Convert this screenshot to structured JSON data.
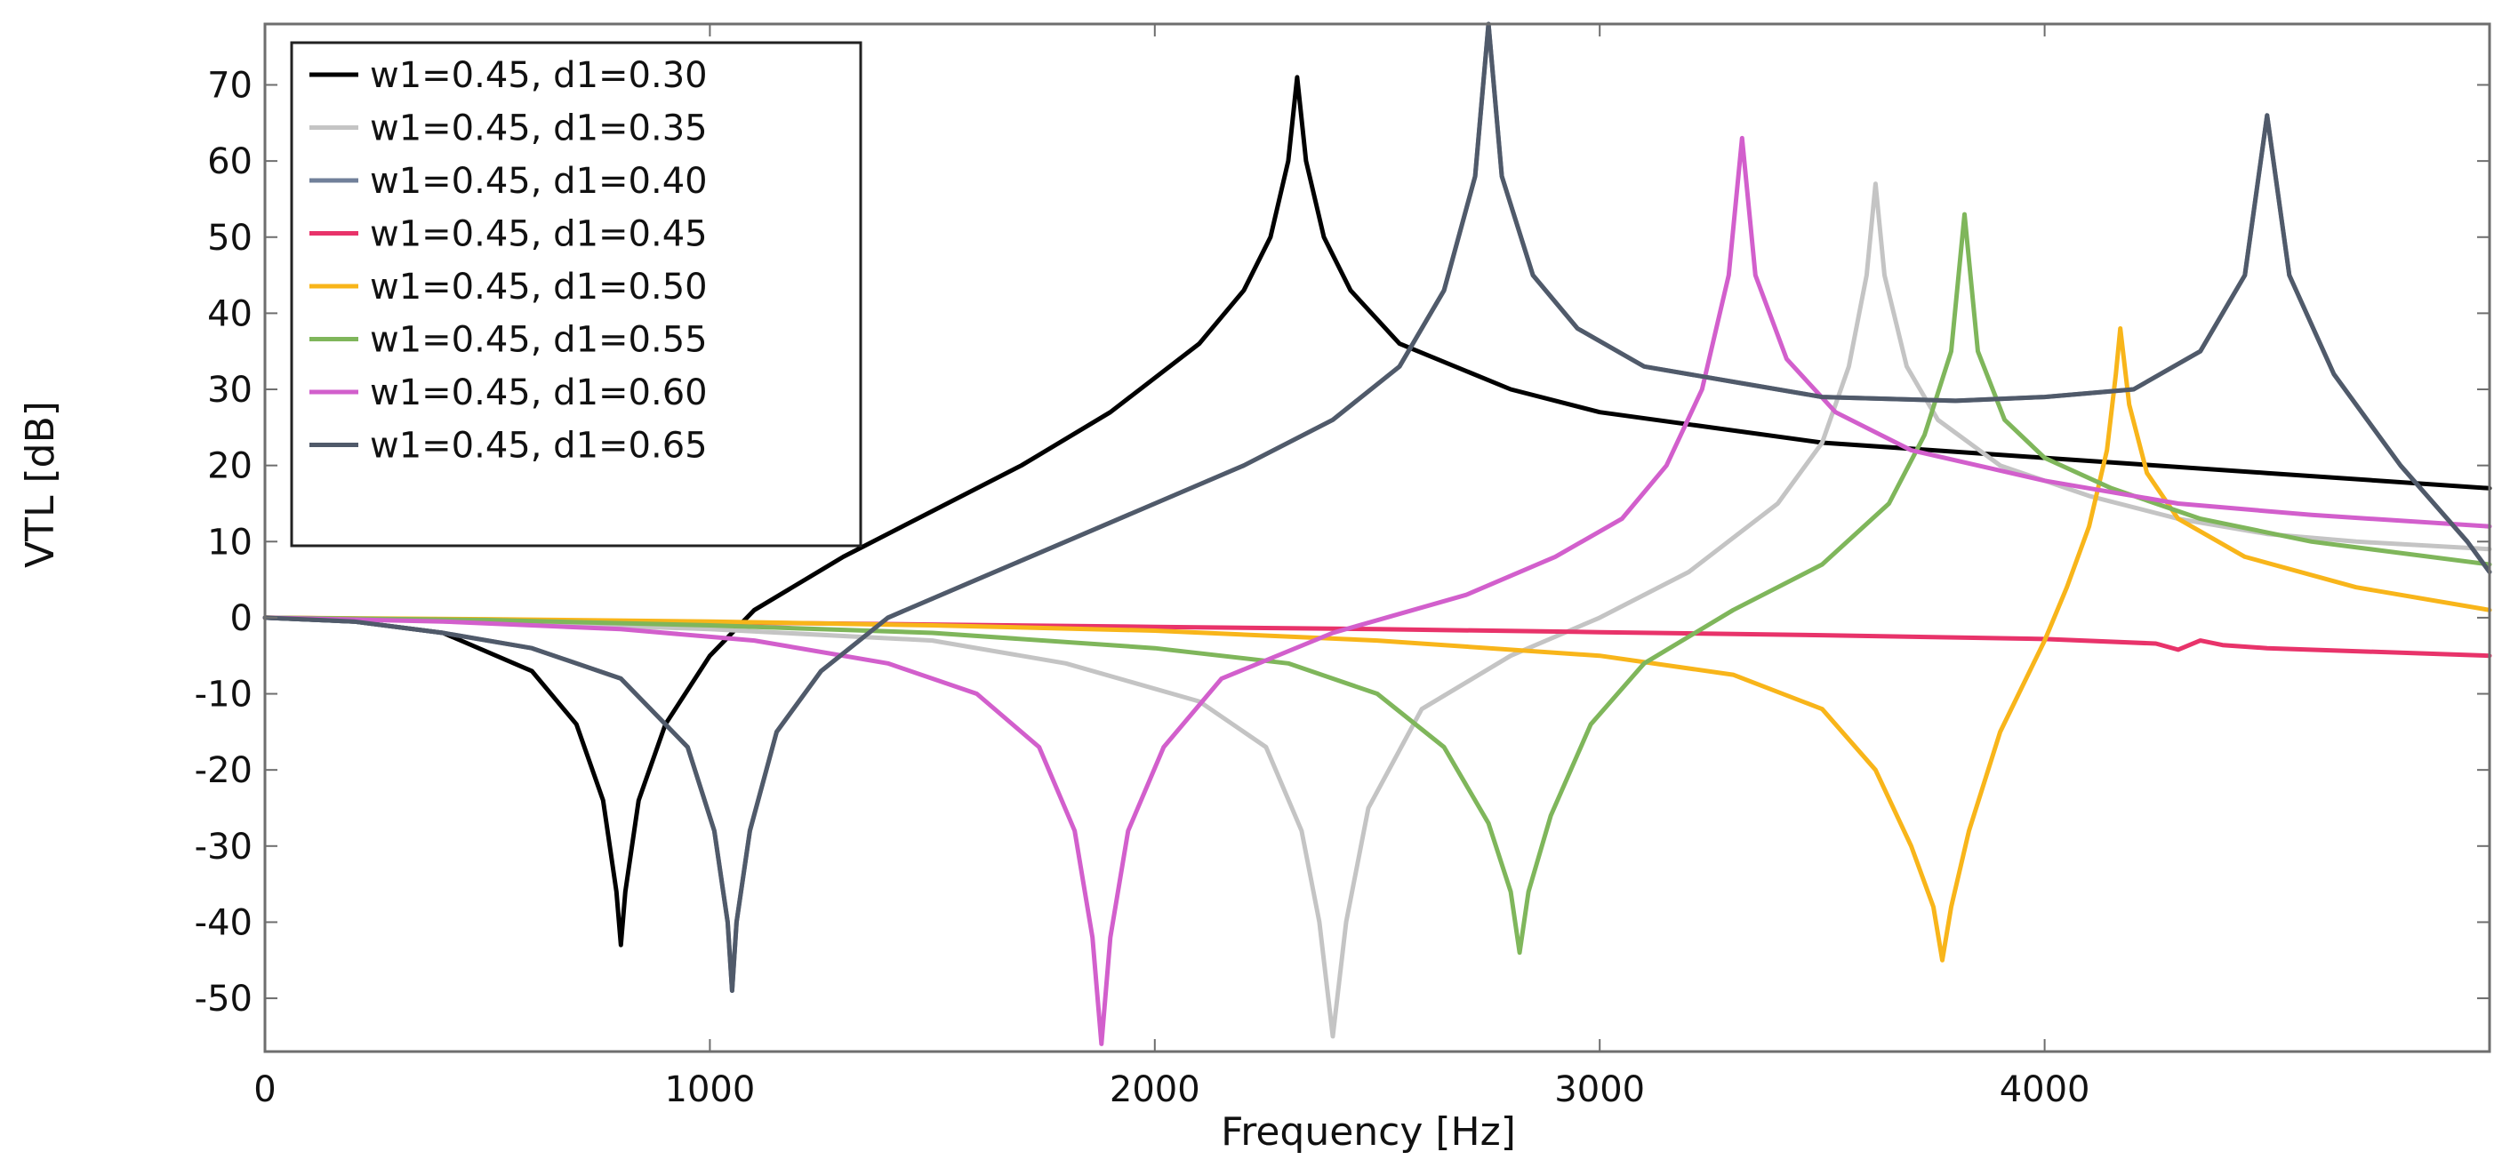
{
  "chart_data": {
    "type": "line",
    "title": "",
    "xlabel": "Frequency [Hz]",
    "ylabel": "VTL [dB]",
    "xlim": [
      0,
      5000
    ],
    "ylim": [
      -57,
      78
    ],
    "x_ticks": [
      0,
      1000,
      2000,
      3000,
      4000
    ],
    "x_tick_labels": [
      "0",
      "1000",
      "2000",
      "3000",
      "4000"
    ],
    "y_ticks": [
      70,
      60,
      50,
      40,
      30,
      20,
      10,
      0,
      -10,
      -20,
      -30,
      -40,
      -50
    ],
    "y_tick_labels": [
      "70",
      "60",
      "50",
      "40",
      "30",
      "20",
      "10",
      "0",
      "-10",
      "-20",
      "-30",
      "-40",
      "-50"
    ],
    "legend_position": "top-left",
    "series": [
      {
        "name": "w1=0.45, d1=0.30",
        "color": "#000000",
        "points": [
          [
            0,
            0
          ],
          [
            200,
            -0.5
          ],
          [
            400,
            -2
          ],
          [
            600,
            -7
          ],
          [
            700,
            -14
          ],
          [
            760,
            -24
          ],
          [
            790,
            -36
          ],
          [
            800,
            -43
          ],
          [
            810,
            -36
          ],
          [
            840,
            -24
          ],
          [
            900,
            -14
          ],
          [
            1000,
            -5
          ],
          [
            1100,
            1
          ],
          [
            1300,
            8
          ],
          [
            1500,
            14
          ],
          [
            1700,
            20
          ],
          [
            1900,
            27
          ],
          [
            2100,
            36
          ],
          [
            2200,
            43
          ],
          [
            2260,
            50
          ],
          [
            2300,
            60
          ],
          [
            2320,
            71
          ],
          [
            2340,
            60
          ],
          [
            2380,
            50
          ],
          [
            2440,
            43
          ],
          [
            2550,
            36
          ],
          [
            2800,
            30
          ],
          [
            3000,
            27
          ],
          [
            3500,
            23
          ],
          [
            4000,
            21
          ],
          [
            4500,
            19
          ],
          [
            5000,
            17
          ]
        ]
      },
      {
        "name": "w1=0.45, d1=0.35",
        "color": "#c4c4c4",
        "points": [
          [
            0,
            0
          ],
          [
            500,
            -0.5
          ],
          [
            1000,
            -1.5
          ],
          [
            1500,
            -3
          ],
          [
            1800,
            -6
          ],
          [
            2100,
            -11
          ],
          [
            2250,
            -17
          ],
          [
            2330,
            -28
          ],
          [
            2370,
            -40
          ],
          [
            2400,
            -55
          ],
          [
            2430,
            -40
          ],
          [
            2480,
            -25
          ],
          [
            2600,
            -12
          ],
          [
            2800,
            -5
          ],
          [
            3000,
            0
          ],
          [
            3200,
            6
          ],
          [
            3400,
            15
          ],
          [
            3500,
            23
          ],
          [
            3560,
            33
          ],
          [
            3600,
            45
          ],
          [
            3620,
            57
          ],
          [
            3640,
            45
          ],
          [
            3690,
            33
          ],
          [
            3760,
            26
          ],
          [
            3900,
            20
          ],
          [
            4100,
            16
          ],
          [
            4300,
            13
          ],
          [
            4500,
            11
          ],
          [
            4700,
            10
          ],
          [
            5000,
            9
          ]
        ]
      },
      {
        "name": "w1=0.45, d1=0.40",
        "color": "#71809a",
        "points": [
          [
            0,
            0
          ],
          [
            200,
            -0.5
          ],
          [
            400,
            -2
          ],
          [
            600,
            -4
          ],
          [
            800,
            -8
          ],
          [
            950,
            -17
          ],
          [
            1010,
            -28
          ],
          [
            1040,
            -40
          ],
          [
            1050,
            -49
          ],
          [
            1060,
            -40
          ],
          [
            1090,
            -28
          ],
          [
            1150,
            -15
          ],
          [
            1250,
            -7
          ],
          [
            1400,
            0
          ],
          [
            1600,
            5
          ],
          [
            1800,
            10
          ],
          [
            2000,
            15
          ],
          [
            2200,
            20
          ],
          [
            2400,
            26
          ],
          [
            2550,
            33
          ],
          [
            2650,
            43
          ],
          [
            2720,
            58
          ],
          [
            2750,
            78
          ],
          [
            2780,
            58
          ],
          [
            2850,
            45
          ],
          [
            2950,
            38
          ],
          [
            3100,
            33
          ],
          [
            3300,
            31
          ],
          [
            3500,
            29
          ],
          [
            3800,
            28.5
          ],
          [
            4000,
            29
          ],
          [
            4200,
            30
          ],
          [
            4350,
            35
          ],
          [
            4450,
            45
          ],
          [
            4500,
            66
          ],
          [
            4550,
            45
          ],
          [
            4650,
            32
          ],
          [
            4800,
            20
          ],
          [
            4950,
            10
          ],
          [
            5000,
            6
          ]
        ]
      },
      {
        "name": "w1=0.45, d1=0.45",
        "color": "#e8336a",
        "points": [
          [
            0,
            0
          ],
          [
            500,
            -0.3
          ],
          [
            1000,
            -0.6
          ],
          [
            1500,
            -0.9
          ],
          [
            2000,
            -1.2
          ],
          [
            2500,
            -1.5
          ],
          [
            3000,
            -1.9
          ],
          [
            3500,
            -2.3
          ],
          [
            4000,
            -2.8
          ],
          [
            4250,
            -3.4
          ],
          [
            4300,
            -4.2
          ],
          [
            4350,
            -3
          ],
          [
            4400,
            -3.6
          ],
          [
            4500,
            -4
          ],
          [
            5000,
            -5
          ]
        ]
      },
      {
        "name": "w1=0.45, d1=0.50",
        "color": "#f8b51a",
        "points": [
          [
            0,
            0
          ],
          [
            500,
            -0.2
          ],
          [
            1000,
            -0.5
          ],
          [
            1500,
            -1
          ],
          [
            2000,
            -1.7
          ],
          [
            2500,
            -3
          ],
          [
            3000,
            -5
          ],
          [
            3300,
            -7.5
          ],
          [
            3500,
            -12
          ],
          [
            3620,
            -20
          ],
          [
            3700,
            -30
          ],
          [
            3750,
            -38
          ],
          [
            3770,
            -45
          ],
          [
            3790,
            -38
          ],
          [
            3830,
            -28
          ],
          [
            3900,
            -15
          ],
          [
            4000,
            -3
          ],
          [
            4050,
            4
          ],
          [
            4100,
            12
          ],
          [
            4140,
            22
          ],
          [
            4160,
            32
          ],
          [
            4170,
            38
          ],
          [
            4190,
            28
          ],
          [
            4230,
            19
          ],
          [
            4300,
            13
          ],
          [
            4450,
            8
          ],
          [
            4700,
            4
          ],
          [
            5000,
            1
          ]
        ]
      },
      {
        "name": "w1=0.45, d1=0.55",
        "color": "#7fb65b",
        "points": [
          [
            0,
            0
          ],
          [
            500,
            -0.3
          ],
          [
            1000,
            -1
          ],
          [
            1500,
            -2
          ],
          [
            2000,
            -4
          ],
          [
            2300,
            -6
          ],
          [
            2500,
            -10
          ],
          [
            2650,
            -17
          ],
          [
            2750,
            -27
          ],
          [
            2800,
            -36
          ],
          [
            2820,
            -44
          ],
          [
            2840,
            -36
          ],
          [
            2890,
            -26
          ],
          [
            2980,
            -14
          ],
          [
            3100,
            -6
          ],
          [
            3300,
            1
          ],
          [
            3500,
            7
          ],
          [
            3650,
            15
          ],
          [
            3730,
            24
          ],
          [
            3790,
            35
          ],
          [
            3820,
            53
          ],
          [
            3850,
            35
          ],
          [
            3910,
            26
          ],
          [
            4000,
            21
          ],
          [
            4150,
            17
          ],
          [
            4350,
            13
          ],
          [
            4600,
            10
          ],
          [
            5000,
            7
          ]
        ]
      },
      {
        "name": "w1=0.45, d1=0.60",
        "color": "#d25fcc",
        "points": [
          [
            0,
            0
          ],
          [
            400,
            -0.5
          ],
          [
            800,
            -1.5
          ],
          [
            1100,
            -3
          ],
          [
            1400,
            -6
          ],
          [
            1600,
            -10
          ],
          [
            1740,
            -17
          ],
          [
            1820,
            -28
          ],
          [
            1860,
            -42
          ],
          [
            1880,
            -56
          ],
          [
            1900,
            -42
          ],
          [
            1940,
            -28
          ],
          [
            2020,
            -17
          ],
          [
            2150,
            -8
          ],
          [
            2400,
            -2
          ],
          [
            2700,
            3
          ],
          [
            2900,
            8
          ],
          [
            3050,
            13
          ],
          [
            3150,
            20
          ],
          [
            3230,
            30
          ],
          [
            3290,
            45
          ],
          [
            3320,
            63
          ],
          [
            3350,
            45
          ],
          [
            3420,
            34
          ],
          [
            3530,
            27
          ],
          [
            3700,
            22
          ],
          [
            4000,
            18
          ],
          [
            4300,
            15
          ],
          [
            4600,
            13.5
          ],
          [
            5000,
            12
          ]
        ]
      },
      {
        "name": "w1=0.45, d1=0.65",
        "color": "#505a6a",
        "points": [
          [
            0,
            0
          ],
          [
            200,
            -0.5
          ],
          [
            400,
            -2
          ],
          [
            600,
            -4
          ],
          [
            800,
            -8
          ],
          [
            950,
            -17
          ],
          [
            1010,
            -28
          ],
          [
            1040,
            -40
          ],
          [
            1050,
            -49
          ],
          [
            1060,
            -40
          ],
          [
            1090,
            -28
          ],
          [
            1150,
            -15
          ],
          [
            1250,
            -7
          ],
          [
            1400,
            0
          ],
          [
            1600,
            5
          ],
          [
            1800,
            10
          ],
          [
            2000,
            15
          ],
          [
            2200,
            20
          ],
          [
            2400,
            26
          ],
          [
            2550,
            33
          ],
          [
            2650,
            43
          ],
          [
            2720,
            58
          ],
          [
            2750,
            78
          ],
          [
            2780,
            58
          ],
          [
            2850,
            45
          ],
          [
            2950,
            38
          ],
          [
            3100,
            33
          ],
          [
            3300,
            31
          ],
          [
            3500,
            29
          ],
          [
            3800,
            28.5
          ],
          [
            4000,
            29
          ],
          [
            4200,
            30
          ],
          [
            4350,
            35
          ],
          [
            4450,
            45
          ],
          [
            4500,
            66
          ],
          [
            4550,
            45
          ],
          [
            4650,
            32
          ],
          [
            4800,
            20
          ],
          [
            4950,
            10
          ],
          [
            5000,
            6
          ]
        ]
      }
    ]
  }
}
